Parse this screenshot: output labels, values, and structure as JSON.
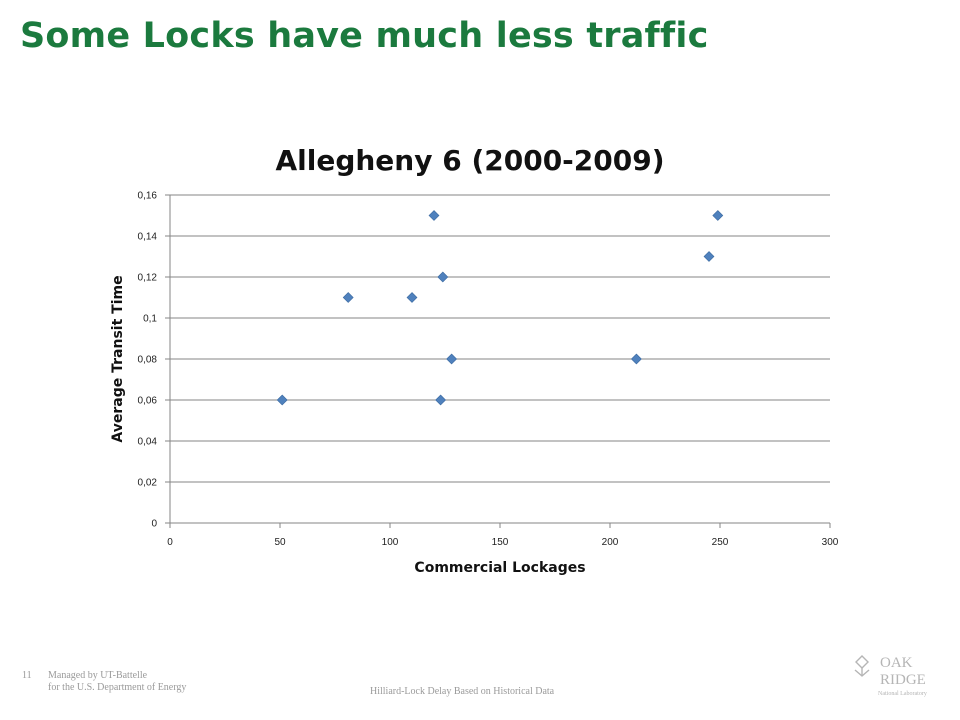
{
  "slide": {
    "title": "Some Locks have much less traffic",
    "footer_page": "11",
    "footer_managed_line1": "Managed by UT-Battelle",
    "footer_managed_line2": "for the U.S. Department of Energy",
    "footer_center": "Hilliard-Lock Delay Based on Historical Data",
    "logo_line1": "OAK",
    "logo_line2": "RIDGE",
    "logo_line3": "National Laboratory"
  },
  "chart_data": {
    "type": "scatter",
    "title": "Allegheny 6 (2000-2009)",
    "xlabel": "Commercial Lockages",
    "ylabel": "Average Transit Time",
    "xlim": [
      0,
      300
    ],
    "ylim": [
      0,
      0.16
    ],
    "x_ticks": [
      "0",
      "50",
      "100",
      "150",
      "200",
      "250",
      "300"
    ],
    "y_ticks": [
      "0",
      "0,02",
      "0,04",
      "0,06",
      "0,08",
      "0,1",
      "0,12",
      "0,14",
      "0,16"
    ],
    "grid": "horizontal",
    "marker_color": "#4f81bd",
    "x": [
      51,
      81,
      110,
      120,
      123,
      124,
      128,
      212,
      245,
      249
    ],
    "y": [
      0.06,
      0.11,
      0.11,
      0.15,
      0.06,
      0.12,
      0.08,
      0.08,
      0.13,
      0.15
    ]
  }
}
